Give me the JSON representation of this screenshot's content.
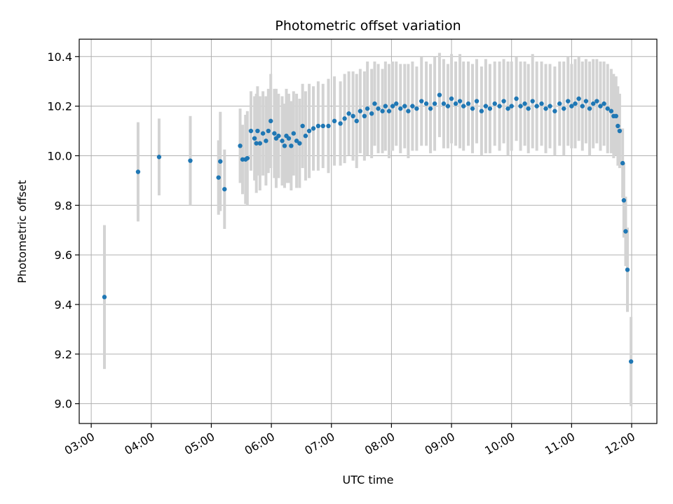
{
  "chart_data": {
    "type": "scatter",
    "title": "Photometric offset variation",
    "xlabel": "UTC time",
    "ylabel": "Photometric offset",
    "x_unit": "hours UTC",
    "xlim": [
      2.8,
      12.42
    ],
    "ylim": [
      8.92,
      10.47
    ],
    "x_ticks": [
      3,
      4,
      5,
      6,
      7,
      8,
      9,
      10,
      11,
      12
    ],
    "x_tick_labels": [
      "03:00",
      "04:00",
      "05:00",
      "06:00",
      "07:00",
      "08:00",
      "09:00",
      "10:00",
      "11:00",
      "12:00"
    ],
    "y_ticks": [
      9.0,
      9.2,
      9.4,
      9.6,
      9.8,
      10.0,
      10.2,
      10.4
    ],
    "y_tick_labels": [
      "9.0",
      "9.2",
      "9.4",
      "9.6",
      "9.8",
      "10.0",
      "10.2",
      "10.4"
    ],
    "grid": true,
    "colors": {
      "points": "#1f77b4",
      "errorbars": "#d3d3d3",
      "grid": "#b0b0b0"
    },
    "series": [
      {
        "x": [
          3.22,
          3.78,
          4.13,
          4.65,
          5.12,
          5.15,
          5.22,
          5.48,
          5.52,
          5.57,
          5.6,
          5.66,
          5.72,
          5.75,
          5.77,
          5.81,
          5.86,
          5.91,
          5.95,
          5.99,
          6.05,
          6.08,
          6.12,
          6.18,
          6.22,
          6.25,
          6.29,
          6.33,
          6.37,
          6.42,
          6.47,
          6.52,
          6.57,
          6.63,
          6.7,
          6.78,
          6.86,
          6.95,
          7.05,
          7.15,
          7.22,
          7.29,
          7.36,
          7.42,
          7.48,
          7.55,
          7.6,
          7.67,
          7.72,
          7.78,
          7.85,
          7.9,
          7.96,
          8.02,
          8.08,
          8.15,
          8.22,
          8.28,
          8.35,
          8.42,
          8.5,
          8.58,
          8.65,
          8.72,
          8.8,
          8.87,
          8.94,
          9.0,
          9.07,
          9.14,
          9.2,
          9.28,
          9.35,
          9.42,
          9.5,
          9.57,
          9.64,
          9.72,
          9.8,
          9.87,
          9.94,
          10.0,
          10.08,
          10.15,
          10.22,
          10.28,
          10.35,
          10.42,
          10.5,
          10.57,
          10.64,
          10.72,
          10.8,
          10.87,
          10.94,
          11.0,
          11.06,
          11.12,
          11.18,
          11.24,
          11.3,
          11.36,
          11.42,
          11.48,
          11.54,
          11.6,
          11.66,
          11.7,
          11.74,
          11.77,
          11.8,
          11.85,
          11.87,
          11.9,
          11.93,
          11.99
        ],
        "y": [
          9.43,
          9.935,
          9.995,
          9.98,
          9.912,
          9.977,
          9.865,
          10.04,
          9.985,
          9.985,
          9.99,
          10.1,
          10.07,
          10.05,
          10.1,
          10.05,
          10.09,
          10.06,
          10.1,
          10.14,
          10.09,
          10.07,
          10.08,
          10.06,
          10.04,
          10.08,
          10.07,
          10.04,
          10.09,
          10.06,
          10.05,
          10.12,
          10.08,
          10.1,
          10.11,
          10.12,
          10.12,
          10.12,
          10.14,
          10.13,
          10.15,
          10.17,
          10.16,
          10.14,
          10.18,
          10.16,
          10.19,
          10.17,
          10.21,
          10.19,
          10.18,
          10.2,
          10.18,
          10.2,
          10.21,
          10.19,
          10.2,
          10.18,
          10.2,
          10.19,
          10.22,
          10.21,
          10.19,
          10.21,
          10.245,
          10.21,
          10.2,
          10.23,
          10.21,
          10.22,
          10.2,
          10.21,
          10.19,
          10.22,
          10.18,
          10.2,
          10.19,
          10.21,
          10.2,
          10.22,
          10.19,
          10.2,
          10.23,
          10.2,
          10.21,
          10.19,
          10.22,
          10.2,
          10.21,
          10.19,
          10.2,
          10.18,
          10.21,
          10.19,
          10.22,
          10.2,
          10.21,
          10.23,
          10.2,
          10.22,
          10.19,
          10.21,
          10.22,
          10.2,
          10.21,
          10.19,
          10.18,
          10.16,
          10.16,
          10.12,
          10.1,
          9.97,
          9.82,
          9.695,
          9.54,
          9.17
        ],
        "err": [
          0.29,
          0.2,
          0.155,
          0.18,
          0.15,
          0.2,
          0.16,
          0.15,
          0.14,
          0.18,
          0.19,
          0.16,
          0.17,
          0.2,
          0.18,
          0.19,
          0.17,
          0.18,
          0.17,
          0.19,
          0.18,
          0.2,
          0.17,
          0.18,
          0.17,
          0.19,
          0.18,
          0.18,
          0.17,
          0.19,
          0.18,
          0.17,
          0.18,
          0.19,
          0.17,
          0.18,
          0.17,
          0.19,
          0.18,
          0.17,
          0.18,
          0.17,
          0.18,
          0.19,
          0.17,
          0.18,
          0.19,
          0.18,
          0.17,
          0.18,
          0.17,
          0.18,
          0.19,
          0.18,
          0.17,
          0.18,
          0.17,
          0.19,
          0.18,
          0.17,
          0.18,
          0.17,
          0.18,
          0.19,
          0.17,
          0.18,
          0.17,
          0.18,
          0.17,
          0.19,
          0.18,
          0.17,
          0.18,
          0.17,
          0.18,
          0.19,
          0.18,
          0.17,
          0.18,
          0.17,
          0.19,
          0.18,
          0.17,
          0.18,
          0.17,
          0.18,
          0.19,
          0.18,
          0.17,
          0.18,
          0.17,
          0.18,
          0.17,
          0.19,
          0.18,
          0.17,
          0.18,
          0.17,
          0.18,
          0.17,
          0.19,
          0.18,
          0.17,
          0.18,
          0.17,
          0.18,
          0.17,
          0.17,
          0.16,
          0.16,
          0.15,
          0.14,
          0.15,
          0.14,
          0.17,
          0.18
        ]
      }
    ]
  }
}
